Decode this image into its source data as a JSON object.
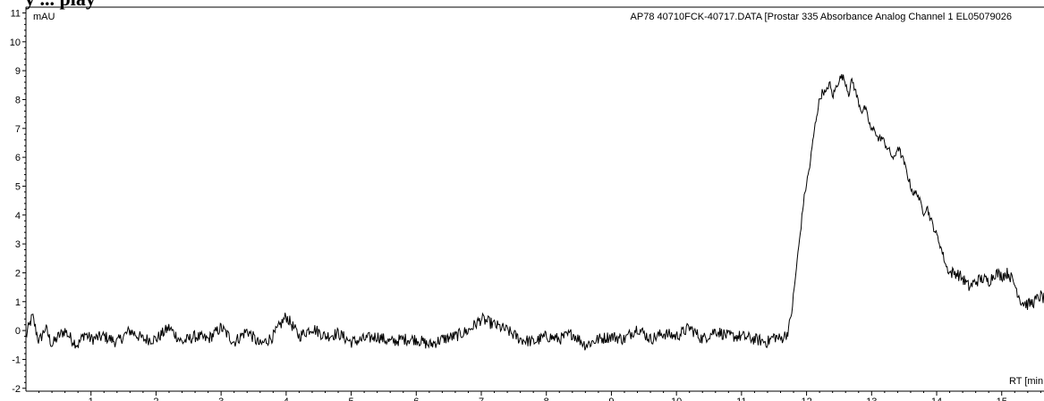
{
  "page": {
    "heading_fragment": "y ... play"
  },
  "chart_data": {
    "type": "line",
    "title": "AP78 40710FCK-40717.DATA [Prostar 335 Absorbance Analog Channel 1 EL05079026",
    "xlabel": "RT [min",
    "ylabel": "mAU",
    "xlim": [
      0,
      15.65
    ],
    "ylim": [
      -2.1,
      11.2
    ],
    "xticks": [
      1,
      2,
      3,
      4,
      5,
      6,
      7,
      8,
      9,
      10,
      11,
      12,
      13,
      14,
      15
    ],
    "yticks": [
      -2,
      -1,
      0,
      1,
      2,
      3,
      4,
      5,
      6,
      7,
      8,
      9,
      10,
      11
    ],
    "grid": false,
    "series": [
      {
        "color": "#000000",
        "x": [
          0.0,
          0.1,
          0.2,
          0.3,
          0.4,
          0.5,
          0.6,
          0.7,
          0.8,
          0.9,
          1.0,
          1.2,
          1.4,
          1.6,
          1.8,
          2.0,
          2.2,
          2.4,
          2.6,
          2.8,
          3.0,
          3.2,
          3.4,
          3.6,
          3.8,
          4.0,
          4.2,
          4.4,
          4.6,
          4.8,
          5.0,
          5.2,
          5.4,
          5.6,
          5.8,
          6.0,
          6.2,
          6.4,
          6.6,
          6.8,
          7.0,
          7.2,
          7.4,
          7.6,
          7.8,
          8.0,
          8.2,
          8.4,
          8.6,
          8.8,
          9.0,
          9.2,
          9.4,
          9.6,
          9.8,
          10.0,
          10.2,
          10.4,
          10.6,
          10.8,
          11.0,
          11.2,
          11.4,
          11.5,
          11.6,
          11.7,
          11.75,
          11.8,
          11.85,
          11.9,
          11.95,
          12.0,
          12.05,
          12.1,
          12.15,
          12.2,
          12.25,
          12.3,
          12.35,
          12.4,
          12.45,
          12.5,
          12.55,
          12.6,
          12.65,
          12.7,
          12.75,
          12.8,
          12.85,
          12.9,
          12.95,
          13.0,
          13.05,
          13.1,
          13.15,
          13.2,
          13.25,
          13.3,
          13.35,
          13.4,
          13.45,
          13.5,
          13.55,
          13.6,
          13.65,
          13.7,
          13.75,
          13.8,
          13.85,
          13.9,
          13.95,
          14.0,
          14.05,
          14.1,
          14.15,
          14.2,
          14.3,
          14.4,
          14.5,
          14.6,
          14.7,
          14.8,
          14.9,
          15.0,
          15.1,
          15.2,
          15.3,
          15.4,
          15.5,
          15.6,
          15.65
        ],
        "y": [
          -0.2,
          0.5,
          -0.4,
          0.1,
          -0.5,
          -0.2,
          0.0,
          -0.3,
          -0.5,
          -0.1,
          -0.3,
          -0.2,
          -0.4,
          0.0,
          -0.3,
          -0.3,
          0.1,
          -0.4,
          -0.2,
          -0.3,
          0.1,
          -0.4,
          0.0,
          -0.5,
          -0.2,
          0.5,
          -0.2,
          0.1,
          -0.2,
          -0.1,
          -0.4,
          -0.3,
          -0.2,
          -0.4,
          -0.3,
          -0.3,
          -0.5,
          -0.3,
          -0.2,
          0.0,
          0.4,
          0.2,
          0.0,
          -0.3,
          -0.4,
          -0.2,
          -0.3,
          -0.1,
          -0.5,
          -0.3,
          -0.2,
          -0.3,
          0.1,
          -0.3,
          -0.1,
          -0.2,
          0.1,
          -0.3,
          0.0,
          -0.2,
          -0.2,
          -0.3,
          -0.4,
          -0.2,
          -0.3,
          -0.1,
          0.3,
          1.2,
          2.3,
          3.3,
          4.4,
          5.1,
          5.7,
          6.6,
          7.4,
          8.0,
          8.3,
          8.2,
          8.6,
          8.1,
          8.4,
          8.7,
          8.8,
          8.6,
          8.2,
          8.7,
          8.3,
          7.9,
          7.6,
          7.7,
          7.3,
          6.9,
          7.0,
          6.6,
          6.7,
          6.5,
          6.3,
          6.1,
          5.9,
          6.4,
          6.1,
          5.8,
          5.4,
          5.0,
          4.7,
          4.8,
          4.4,
          4.1,
          4.3,
          3.9,
          3.6,
          3.3,
          3.0,
          2.6,
          2.2,
          2.0,
          2.0,
          1.8,
          1.5,
          1.7,
          1.8,
          1.7,
          2.0,
          1.9,
          2.0,
          1.6,
          1.0,
          0.9,
          1.0,
          1.2,
          1.1
        ]
      }
    ]
  }
}
